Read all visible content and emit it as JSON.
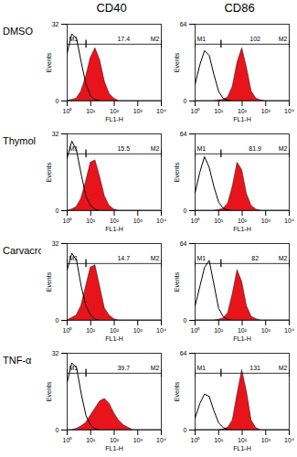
{
  "columns": [
    "CD40",
    "CD86"
  ],
  "rows": [
    "DMSO",
    "Thymol",
    "Carvacrol",
    "TNF-α"
  ],
  "chart_data": [
    {
      "type": "area",
      "log": "x",
      "xlabel": "FL1-H",
      "ylabel": "Events",
      "x": [
        1,
        1.58,
        2.51,
        3.98,
        6.31,
        10,
        15.8,
        25.1,
        39.8,
        63.1,
        100,
        158,
        251,
        398,
        631,
        1000,
        1585,
        2512,
        3981,
        6310,
        10000
      ],
      "xlim": [
        1,
        10000
      ],
      "xticks": [
        {
          "value": 1,
          "label": "10⁰"
        },
        {
          "value": 10,
          "label": "10¹"
        },
        {
          "value": 100,
          "label": "10²"
        },
        {
          "value": 1000,
          "label": "10³"
        },
        {
          "value": 10000,
          "label": "10⁴"
        }
      ],
      "ylim": [
        0,
        32
      ],
      "yticks": [
        0,
        32
      ],
      "series": [
        {
          "type": "area",
          "color": "#e8141c",
          "values": [
            0,
            0.5,
            1,
            4,
            10,
            18,
            22,
            17,
            8,
            3,
            1,
            0,
            0,
            0,
            0,
            0,
            0,
            0,
            0,
            0,
            0
          ]
        },
        {
          "type": "line",
          "color": "#000000",
          "values": [
            20,
            28,
            26,
            16,
            7,
            2,
            0.5,
            0,
            0,
            0,
            0,
            0,
            0,
            0,
            0,
            0,
            0,
            0,
            0,
            0,
            0
          ]
        }
      ],
      "gates": [
        {
          "label": "M1",
          "range": [
            1,
            6.3
          ]
        },
        {
          "label": "M2",
          "range": [
            6.3,
            10000
          ]
        }
      ],
      "annotation": 17.4
    },
    {
      "type": "area",
      "log": "x",
      "xlabel": "FL1-H",
      "ylabel": "Events",
      "x": [
        1,
        1.58,
        2.51,
        3.98,
        6.31,
        10,
        15.8,
        25.1,
        39.8,
        63.1,
        100,
        158,
        251,
        398,
        631,
        1000,
        1585,
        2512,
        3981,
        6310,
        10000
      ],
      "xlim": [
        1,
        10000
      ],
      "xticks": [
        {
          "value": 1,
          "label": "10⁰"
        },
        {
          "value": 10,
          "label": "10¹"
        },
        {
          "value": 100,
          "label": "10²"
        },
        {
          "value": 1000,
          "label": "10³"
        },
        {
          "value": 10000,
          "label": "10⁴"
        }
      ],
      "ylim": [
        0,
        64
      ],
      "yticks": [
        0,
        64
      ],
      "series": [
        {
          "type": "area",
          "color": "#e8141c",
          "values": [
            0,
            0,
            0,
            0,
            0,
            0.5,
            1,
            3,
            12,
            32,
            44,
            28,
            8,
            2,
            0.5,
            0,
            0,
            0,
            0,
            0,
            0
          ]
        },
        {
          "type": "line",
          "color": "#000000",
          "values": [
            14,
            30,
            42,
            38,
            22,
            8,
            2,
            0.5,
            0,
            0,
            0,
            0,
            0,
            0,
            0,
            0,
            0,
            0,
            0,
            0,
            0
          ]
        }
      ],
      "gates": [
        {
          "label": "M1",
          "range": [
            1,
            12.6
          ]
        },
        {
          "label": "M2",
          "range": [
            12.6,
            10000
          ]
        }
      ],
      "annotation": 102
    },
    {
      "type": "area",
      "log": "x",
      "xlabel": "FL1-H",
      "ylabel": "Events",
      "x": [
        1,
        1.58,
        2.51,
        3.98,
        6.31,
        10,
        15.8,
        25.1,
        39.8,
        63.1,
        100,
        158,
        251,
        398,
        631,
        1000,
        1585,
        2512,
        3981,
        6310,
        10000
      ],
      "xlim": [
        1,
        10000
      ],
      "xticks": [
        {
          "value": 1,
          "label": "10⁰"
        },
        {
          "value": 10,
          "label": "10¹"
        },
        {
          "value": 100,
          "label": "10²"
        },
        {
          "value": 1000,
          "label": "10³"
        },
        {
          "value": 10000,
          "label": "10⁴"
        }
      ],
      "ylim": [
        0,
        32
      ],
      "yticks": [
        0,
        32
      ],
      "series": [
        {
          "type": "area",
          "color": "#e8141c",
          "values": [
            0,
            0.5,
            1.5,
            5,
            12,
            20,
            21,
            14,
            6,
            2,
            0.5,
            0,
            0,
            0,
            0,
            0,
            0,
            0,
            0,
            0,
            0
          ]
        },
        {
          "type": "line",
          "color": "#000000",
          "values": [
            22,
            29,
            25,
            15,
            6,
            2,
            0.5,
            0,
            0,
            0,
            0,
            0,
            0,
            0,
            0,
            0,
            0,
            0,
            0,
            0,
            0
          ]
        }
      ],
      "gates": [
        {
          "label": "M1",
          "range": [
            1,
            6.3
          ]
        },
        {
          "label": "M2",
          "range": [
            6.3,
            10000
          ]
        }
      ],
      "annotation": 15.5
    },
    {
      "type": "area",
      "log": "x",
      "xlabel": "FL1-H",
      "ylabel": "Events",
      "x": [
        1,
        1.58,
        2.51,
        3.98,
        6.31,
        10,
        15.8,
        25.1,
        39.8,
        63.1,
        100,
        158,
        251,
        398,
        631,
        1000,
        1585,
        2512,
        3981,
        6310,
        10000
      ],
      "xlim": [
        1,
        10000
      ],
      "xticks": [
        {
          "value": 1,
          "label": "10⁰"
        },
        {
          "value": 10,
          "label": "10¹"
        },
        {
          "value": 100,
          "label": "10²"
        },
        {
          "value": 1000,
          "label": "10³"
        },
        {
          "value": 10000,
          "label": "10⁴"
        }
      ],
      "ylim": [
        0,
        64
      ],
      "yticks": [
        0,
        64
      ],
      "series": [
        {
          "type": "area",
          "color": "#e8141c",
          "values": [
            0,
            0,
            0,
            0,
            0,
            0.5,
            1.5,
            6,
            20,
            40,
            34,
            14,
            4,
            1,
            0,
            0,
            0,
            0,
            0,
            0,
            0
          ]
        },
        {
          "type": "line",
          "color": "#000000",
          "values": [
            15,
            32,
            45,
            36,
            20,
            7,
            2,
            0.5,
            0,
            0,
            0,
            0,
            0,
            0,
            0,
            0,
            0,
            0,
            0,
            0,
            0
          ]
        }
      ],
      "gates": [
        {
          "label": "M1",
          "range": [
            1,
            12.6
          ]
        },
        {
          "label": "M2",
          "range": [
            12.6,
            10000
          ]
        }
      ],
      "annotation": 81.9
    },
    {
      "type": "area",
      "log": "x",
      "xlabel": "FL1-H",
      "ylabel": "Events",
      "x": [
        1,
        1.58,
        2.51,
        3.98,
        6.31,
        10,
        15.8,
        25.1,
        39.8,
        63.1,
        100,
        158,
        251,
        398,
        631,
        1000,
        1585,
        2512,
        3981,
        6310,
        10000
      ],
      "xlim": [
        1,
        10000
      ],
      "xticks": [
        {
          "value": 1,
          "label": "10⁰"
        },
        {
          "value": 10,
          "label": "10¹"
        },
        {
          "value": 100,
          "label": "10²"
        },
        {
          "value": 1000,
          "label": "10³"
        },
        {
          "value": 10000,
          "label": "10⁴"
        }
      ],
      "ylim": [
        0,
        32
      ],
      "yticks": [
        0,
        32
      ],
      "series": [
        {
          "type": "area",
          "color": "#e8141c",
          "values": [
            0,
            1,
            2,
            6,
            14,
            22,
            23,
            14,
            5,
            2,
            0.5,
            0,
            0,
            0,
            0,
            0,
            0,
            0,
            0,
            0,
            0
          ]
        },
        {
          "type": "line",
          "color": "#000000",
          "values": [
            21,
            28,
            25,
            14,
            6,
            2,
            0.5,
            0,
            0,
            0,
            0,
            0,
            0,
            0,
            0,
            0,
            0,
            0,
            0,
            0,
            0
          ]
        }
      ],
      "gates": [
        {
          "label": "M1",
          "range": [
            1,
            6.3
          ]
        },
        {
          "label": "M2",
          "range": [
            6.3,
            10000
          ]
        }
      ],
      "annotation": 14.7
    },
    {
      "type": "area",
      "log": "x",
      "xlabel": "FL1-H",
      "ylabel": "Events",
      "x": [
        1,
        1.58,
        2.51,
        3.98,
        6.31,
        10,
        15.8,
        25.1,
        39.8,
        63.1,
        100,
        158,
        251,
        398,
        631,
        1000,
        1585,
        2512,
        3981,
        6310,
        10000
      ],
      "xlim": [
        1,
        10000
      ],
      "xticks": [
        {
          "value": 1,
          "label": "10⁰"
        },
        {
          "value": 10,
          "label": "10¹"
        },
        {
          "value": 100,
          "label": "10²"
        },
        {
          "value": 1000,
          "label": "10³"
        },
        {
          "value": 10000,
          "label": "10⁴"
        }
      ],
      "ylim": [
        0,
        64
      ],
      "yticks": [
        0,
        64
      ],
      "series": [
        {
          "type": "area",
          "color": "#e8141c",
          "values": [
            0,
            0,
            0,
            0,
            0,
            0.5,
            1.5,
            6,
            22,
            42,
            32,
            12,
            3,
            1,
            0,
            0,
            0,
            0,
            0,
            0,
            0
          ]
        },
        {
          "type": "line",
          "color": "#000000",
          "values": [
            12,
            28,
            44,
            50,
            30,
            10,
            3,
            0.5,
            0,
            0,
            0,
            0,
            0,
            0,
            0,
            0,
            0,
            0,
            0,
            0,
            0
          ]
        }
      ],
      "gates": [
        {
          "label": "M1",
          "range": [
            1,
            12.6
          ]
        },
        {
          "label": "M2",
          "range": [
            12.6,
            10000
          ]
        }
      ],
      "annotation": 82
    },
    {
      "type": "area",
      "log": "x",
      "xlabel": "FL1-H",
      "ylabel": "Events",
      "x": [
        1,
        1.58,
        2.51,
        3.98,
        6.31,
        10,
        15.8,
        25.1,
        39.8,
        63.1,
        100,
        158,
        251,
        398,
        631,
        1000,
        1585,
        2512,
        3981,
        6310,
        10000
      ],
      "xlim": [
        1,
        10000
      ],
      "xticks": [
        {
          "value": 1,
          "label": "10⁰"
        },
        {
          "value": 10,
          "label": "10¹"
        },
        {
          "value": 100,
          "label": "10²"
        },
        {
          "value": 1000,
          "label": "10³"
        },
        {
          "value": 10000,
          "label": "10⁴"
        }
      ],
      "ylim": [
        0,
        32
      ],
      "yticks": [
        0,
        32
      ],
      "series": [
        {
          "type": "area",
          "color": "#e8141c",
          "values": [
            0,
            0,
            0.5,
            1.5,
            3,
            6,
            9,
            12,
            13,
            11,
            7,
            4,
            2,
            1,
            0,
            0,
            0,
            0,
            0,
            0,
            0
          ]
        },
        {
          "type": "line",
          "color": "#000000",
          "values": [
            20,
            28,
            26,
            15,
            6,
            2,
            0.5,
            0,
            0,
            0,
            0,
            0,
            0,
            0,
            0,
            0,
            0,
            0,
            0,
            0,
            0
          ]
        }
      ],
      "gates": [
        {
          "label": "M1",
          "range": [
            1,
            6.3
          ]
        },
        {
          "label": "M2",
          "range": [
            6.3,
            10000
          ]
        }
      ],
      "annotation": 39.7
    },
    {
      "type": "area",
      "log": "x",
      "xlabel": "FL1-H",
      "ylabel": "Events",
      "x": [
        1,
        1.58,
        2.51,
        3.98,
        6.31,
        10,
        15.8,
        25.1,
        39.8,
        63.1,
        100,
        158,
        251,
        398,
        631,
        1000,
        1585,
        2512,
        3981,
        6310,
        10000
      ],
      "xlim": [
        1,
        10000
      ],
      "xticks": [
        {
          "value": 1,
          "label": "10⁰"
        },
        {
          "value": 10,
          "label": "10¹"
        },
        {
          "value": 100,
          "label": "10²"
        },
        {
          "value": 1000,
          "label": "10³"
        },
        {
          "value": 10000,
          "label": "10⁴"
        }
      ],
      "ylim": [
        0,
        64
      ],
      "yticks": [
        0,
        64
      ],
      "series": [
        {
          "type": "area",
          "color": "#e8141c",
          "values": [
            0,
            0,
            0,
            0,
            0,
            0,
            0.5,
            2,
            8,
            30,
            50,
            32,
            8,
            1.5,
            0,
            0,
            0,
            0,
            0,
            0,
            0
          ]
        },
        {
          "type": "line",
          "color": "#000000",
          "values": [
            10,
            22,
            30,
            28,
            16,
            6,
            2,
            0.5,
            0,
            0,
            0,
            0,
            0,
            0,
            0,
            0,
            0,
            0,
            0,
            0,
            0
          ]
        }
      ],
      "gates": [
        {
          "label": "M1",
          "range": [
            1,
            12.6
          ]
        },
        {
          "label": "M2",
          "range": [
            12.6,
            10000
          ]
        }
      ],
      "annotation": 131
    }
  ]
}
